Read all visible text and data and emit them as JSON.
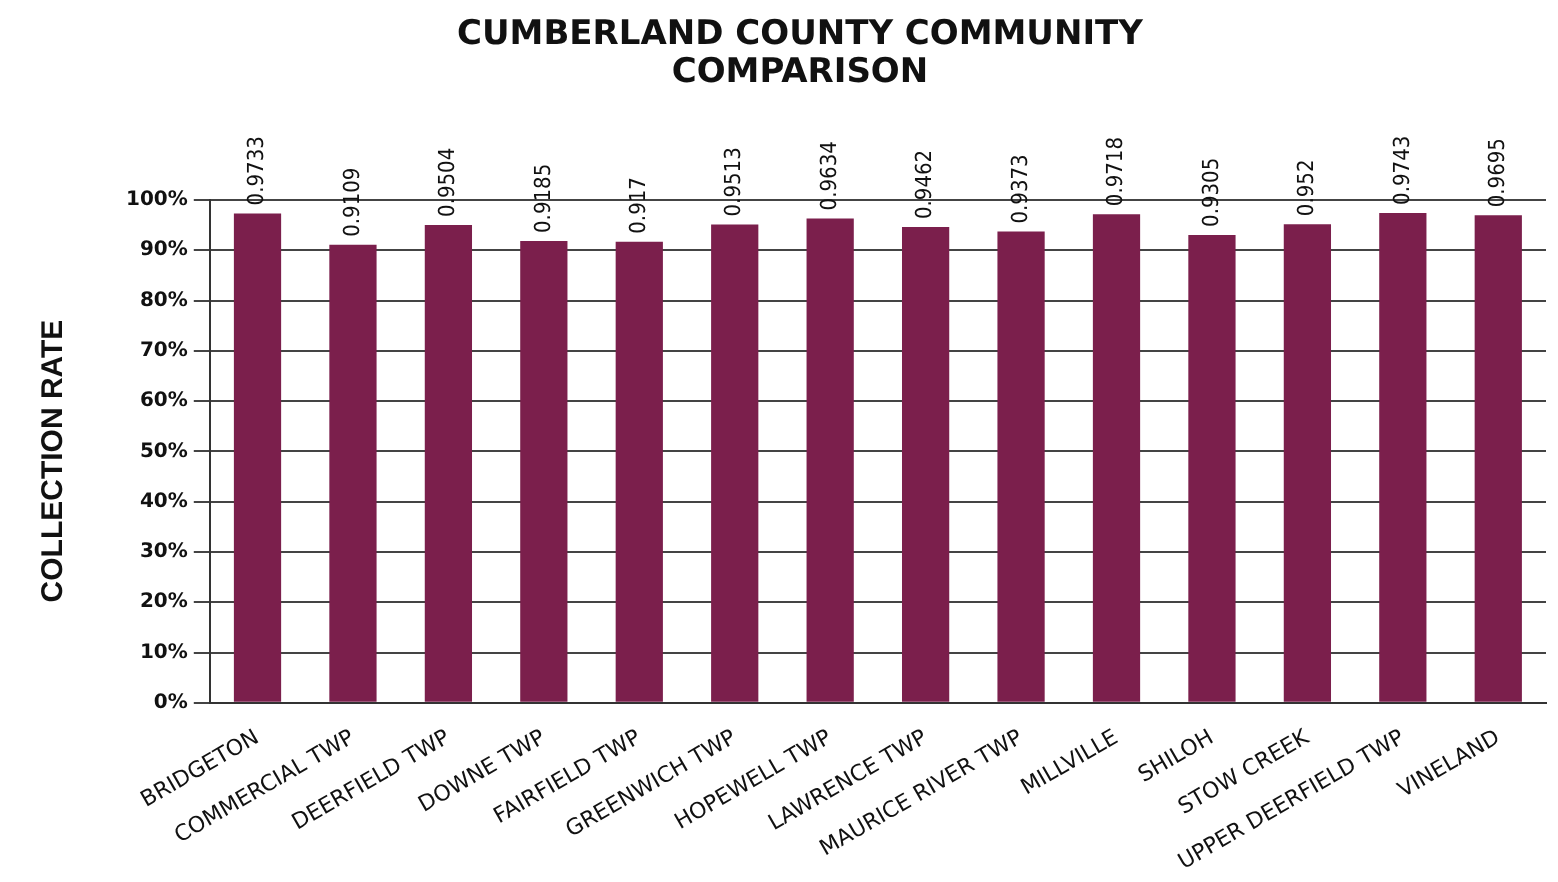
{
  "chart_data": {
    "type": "bar",
    "title": "CUMBERLAND COUNTY COMMUNITY COMPARISON",
    "ylabel": "COLLECTION RATE",
    "categories": [
      "BRIDGETON",
      "COMMERCIAL TWP",
      "DEERFIELD TWP",
      "DOWNE TWP",
      "FAIRFIELD TWP",
      "GREENWICH TWP",
      "HOPEWELL TWP",
      "LAWRENCE TWP",
      "MAURICE RIVER TWP",
      "MILLVILLE",
      "SHILOH",
      "STOW CREEK",
      "UPPER DEERFIELD TWP",
      "VINELAND"
    ],
    "values": [
      0.9733,
      0.9109,
      0.9504,
      0.9185,
      0.917,
      0.9513,
      0.9634,
      0.9462,
      0.9373,
      0.9718,
      0.9305,
      0.952,
      0.9743,
      0.9695
    ],
    "color": "#7b1f4c",
    "ylim": [
      0,
      1
    ],
    "yticks": [
      {
        "value": 0,
        "label": "0%"
      },
      {
        "value": 0.1,
        "label": "10%"
      },
      {
        "value": 0.2,
        "label": "20%"
      },
      {
        "value": 0.3,
        "label": "30%"
      },
      {
        "value": 0.4,
        "label": "40%"
      },
      {
        "value": 0.5,
        "label": "50%"
      },
      {
        "value": 0.6,
        "label": "60%"
      },
      {
        "value": 0.7,
        "label": "70%"
      },
      {
        "value": 0.8,
        "label": "80%"
      },
      {
        "value": 0.9,
        "label": "90%"
      },
      {
        "value": 1,
        "label": "100%"
      }
    ],
    "grid": "y",
    "data_labels": true
  }
}
